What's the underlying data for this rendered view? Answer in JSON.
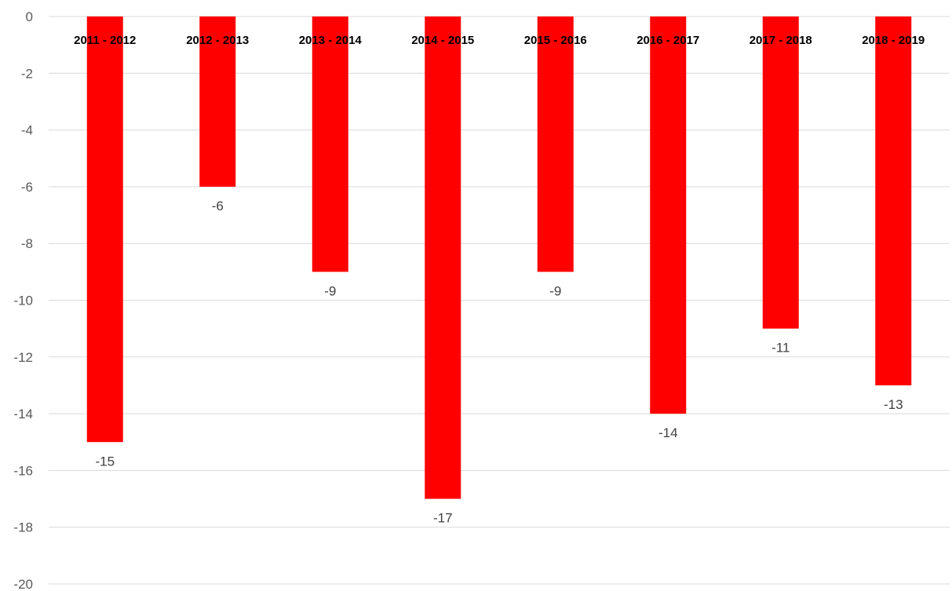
{
  "chart_data": {
    "type": "bar",
    "title": "",
    "xlabel": "",
    "ylabel": "",
    "categories": [
      "2011 - 2012",
      "2012 - 2013",
      "2013 - 2014",
      "2014 - 2015",
      "2015 - 2016",
      "2016 - 2017",
      "2017 - 2018",
      "2018 - 2019"
    ],
    "values": [
      -15,
      -6,
      -9,
      -17,
      -9,
      -14,
      -11,
      -13
    ],
    "data_labels": [
      "-15",
      "-6",
      "-9",
      "-17",
      "-9",
      "-14",
      "-11",
      "-13"
    ],
    "ylim": [
      -20,
      0
    ],
    "y_ticks": [
      0,
      -2,
      -4,
      -6,
      -8,
      -10,
      -12,
      -14,
      -16,
      -18,
      -20
    ],
    "y_tick_labels": [
      "0",
      "-2",
      "-4",
      "-6",
      "-8",
      "-10",
      "-12",
      "-14",
      "-16",
      "-18",
      "-20"
    ],
    "grid": true,
    "legend": "none",
    "bar_color": "#FF0000",
    "gridline_color": "#D9D9D9"
  }
}
